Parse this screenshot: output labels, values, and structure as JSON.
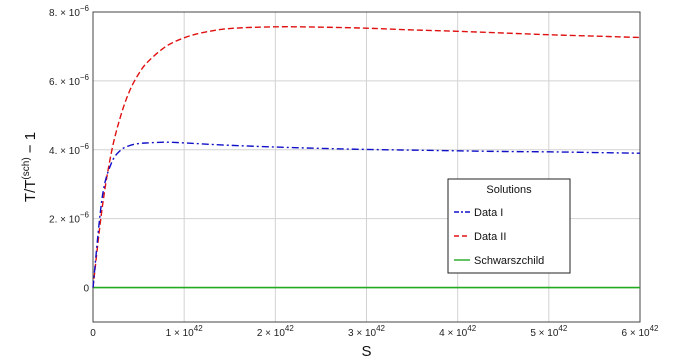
{
  "chart_data": {
    "type": "line",
    "title": "",
    "xlabel": "S",
    "ylabel_parts": {
      "base": "T/T",
      "sup": "(sch)",
      "tail": " − 1"
    },
    "xlim": [
      0,
      6e+42
    ],
    "ylim": [
      -1e-06,
      8e-06
    ],
    "grid": true,
    "x_ticks": [
      {
        "value": 0,
        "mant": "0",
        "exp": ""
      },
      {
        "value": 1e+42,
        "mant": "1 × 10",
        "exp": "42"
      },
      {
        "value": 2e+42,
        "mant": "2 × 10",
        "exp": "42"
      },
      {
        "value": 3e+42,
        "mant": "3 × 10",
        "exp": "42"
      },
      {
        "value": 4e+42,
        "mant": "4 × 10",
        "exp": "42"
      },
      {
        "value": 5e+42,
        "mant": "5 × 10",
        "exp": "42"
      },
      {
        "value": 6e+42,
        "mant": "6 × 10",
        "exp": "42"
      }
    ],
    "y_ticks": [
      {
        "value": 0,
        "mant": "0",
        "exp": ""
      },
      {
        "value": 2e-06,
        "mant": "2. × 10",
        "exp": "−6"
      },
      {
        "value": 4e-06,
        "mant": "4. × 10",
        "exp": "−6"
      },
      {
        "value": 6e-06,
        "mant": "6. × 10",
        "exp": "−6"
      },
      {
        "value": 8e-06,
        "mant": "8. × 10",
        "exp": "−6"
      }
    ],
    "legend": {
      "title": "Solutions",
      "placement": "lower-right"
    },
    "series": [
      {
        "name": "Data I",
        "color": "#1010c8",
        "style": "dashdot",
        "x": [
          0,
          1e+41,
          2e+41,
          3e+41,
          4e+41,
          5e+41,
          6e+41,
          8e+41,
          1e+42,
          1.2e+42,
          1.5e+42,
          2e+42,
          2.5e+42,
          3e+42,
          3.5e+42,
          4e+42,
          4.5e+42,
          5e+42,
          5.5e+42,
          6e+42
        ],
        "y": [
          0,
          2.6e-06,
          3.6e-06,
          3.98e-06,
          4.12e-06,
          4.18e-06,
          4.2e-06,
          4.22e-06,
          4.2e-06,
          4.17e-06,
          4.13e-06,
          4.08e-06,
          4.04e-06,
          4.01e-06,
          3.99e-06,
          3.97e-06,
          3.95e-06,
          3.94e-06,
          3.92e-06,
          3.9e-06
        ]
      },
      {
        "name": "Data II",
        "color": "#e01010",
        "style": "dashed",
        "x": [
          0,
          1e+41,
          2e+41,
          3e+41,
          4e+41,
          5e+41,
          6e+41,
          8e+41,
          1e+42,
          1.2e+42,
          1.5e+42,
          2e+42,
          2.5e+42,
          3e+42,
          3.5e+42,
          4e+42,
          4.5e+42,
          5e+42,
          5.5e+42,
          6e+42
        ],
        "y": [
          0,
          2.3e-06,
          3.9e-06,
          4.95e-06,
          5.7e-06,
          6.2e-06,
          6.55e-06,
          7e-06,
          7.25e-06,
          7.4e-06,
          7.52e-06,
          7.57e-06,
          7.56e-06,
          7.53e-06,
          7.48e-06,
          7.44e-06,
          7.39e-06,
          7.34e-06,
          7.3e-06,
          7.26e-06
        ]
      },
      {
        "name": "Schwarszchild",
        "color": "#22aa22",
        "style": "solid",
        "x": [
          0,
          6e+42
        ],
        "y": [
          0,
          0
        ]
      }
    ]
  }
}
